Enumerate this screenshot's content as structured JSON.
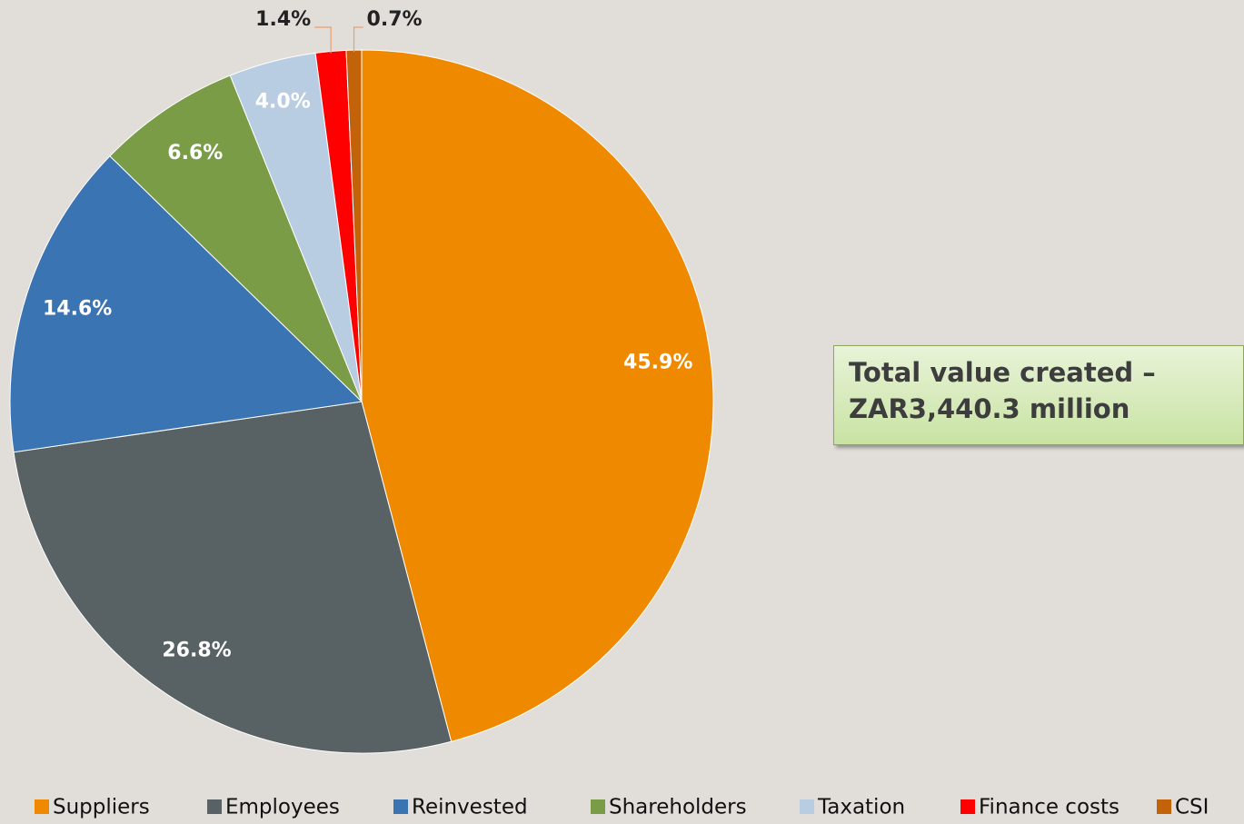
{
  "chart_data": {
    "type": "pie",
    "categories": [
      "Suppliers",
      "Employees",
      "Reinvested",
      "Shareholders",
      "Taxation",
      "Finance costs",
      "CSI"
    ],
    "values": [
      45.9,
      26.8,
      14.6,
      6.6,
      4.0,
      1.4,
      0.7
    ],
    "value_labels": [
      "45.9%",
      "26.8%",
      "14.6%",
      "6.6%",
      "4.0%",
      "1.4%",
      "0.7%"
    ],
    "colors": [
      "#ef8a00",
      "#586163",
      "#3b74b2",
      "#7a9c47",
      "#b9cde2",
      "#ff0000",
      "#c2630a"
    ],
    "annotation": "Total value created – ZAR3,440.3 million",
    "legend": "bottom"
  }
}
